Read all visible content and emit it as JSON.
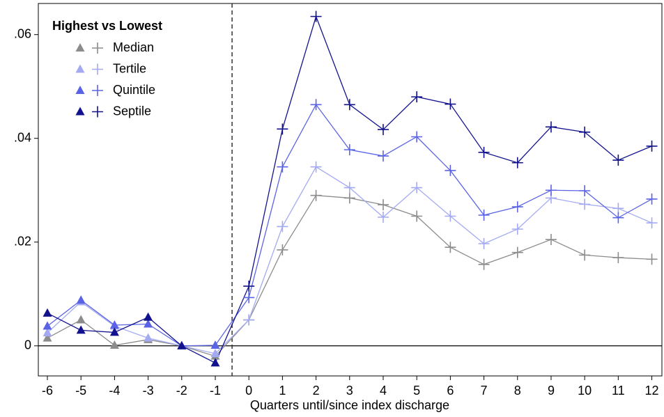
{
  "chart_data": {
    "type": "line",
    "legend_title": "Highest vs Lowest",
    "legend_position": "top-left",
    "x_label": "Quarters until/since index discharge",
    "x": [
      -6,
      -5,
      -4,
      -3,
      -2,
      -1,
      0,
      1,
      2,
      3,
      4,
      5,
      6,
      7,
      8,
      9,
      10,
      11,
      12
    ],
    "series": [
      {
        "name": "Median",
        "color": "#8c8c8c",
        "values": [
          0.0015,
          0.005,
          0.0001,
          0.0012,
          0,
          -0.002,
          0.005,
          0.0185,
          0.029,
          0.0285,
          0.0272,
          0.025,
          0.019,
          0.0157,
          0.018,
          0.0205,
          0.0175,
          0.017,
          0.0167
        ]
      },
      {
        "name": "Tertile",
        "color": "#a3aaf2",
        "values": [
          0.0025,
          0.0085,
          0.0038,
          0.0015,
          0,
          -0.0015,
          0.005,
          0.023,
          0.0345,
          0.0305,
          0.0248,
          0.0305,
          0.025,
          0.0197,
          0.0225,
          0.0285,
          0.0273,
          0.0265,
          0.0237
        ]
      },
      {
        "name": "Quintile",
        "color": "#5a63e6",
        "values": [
          0.0038,
          0.0088,
          0.004,
          0.0042,
          0,
          0.0001,
          0.0093,
          0.0345,
          0.0465,
          0.0378,
          0.0366,
          0.0403,
          0.0338,
          0.0252,
          0.0268,
          0.03,
          0.0299,
          0.0247,
          0.0283
        ]
      },
      {
        "name": "Septile",
        "color": "#12128e",
        "values": [
          0.0063,
          0.003,
          0.0026,
          0.0055,
          0,
          -0.0033,
          0.0115,
          0.0418,
          0.0635,
          0.0465,
          0.0417,
          0.048,
          0.0466,
          0.0373,
          0.0353,
          0.0422,
          0.0412,
          0.0358,
          0.0385
        ]
      }
    ],
    "pre_marker": "triangle",
    "post_marker": "plus",
    "vline": -0.5,
    "hline": 0,
    "xlim": [
      -6.27,
      12.3
    ],
    "xticks": [
      -6,
      -5,
      -4,
      -3,
      -2,
      -1,
      0,
      1,
      2,
      3,
      4,
      5,
      6,
      7,
      8,
      9,
      10,
      11,
      12
    ],
    "ylim": [
      -0.0058,
      0.066
    ],
    "yticks": [
      {
        "value": 0,
        "label": "0"
      },
      {
        "value": 0.02,
        "label": ".02"
      },
      {
        "value": 0.04,
        "label": ".04"
      },
      {
        "value": 0.06,
        "label": ".06"
      }
    ]
  }
}
